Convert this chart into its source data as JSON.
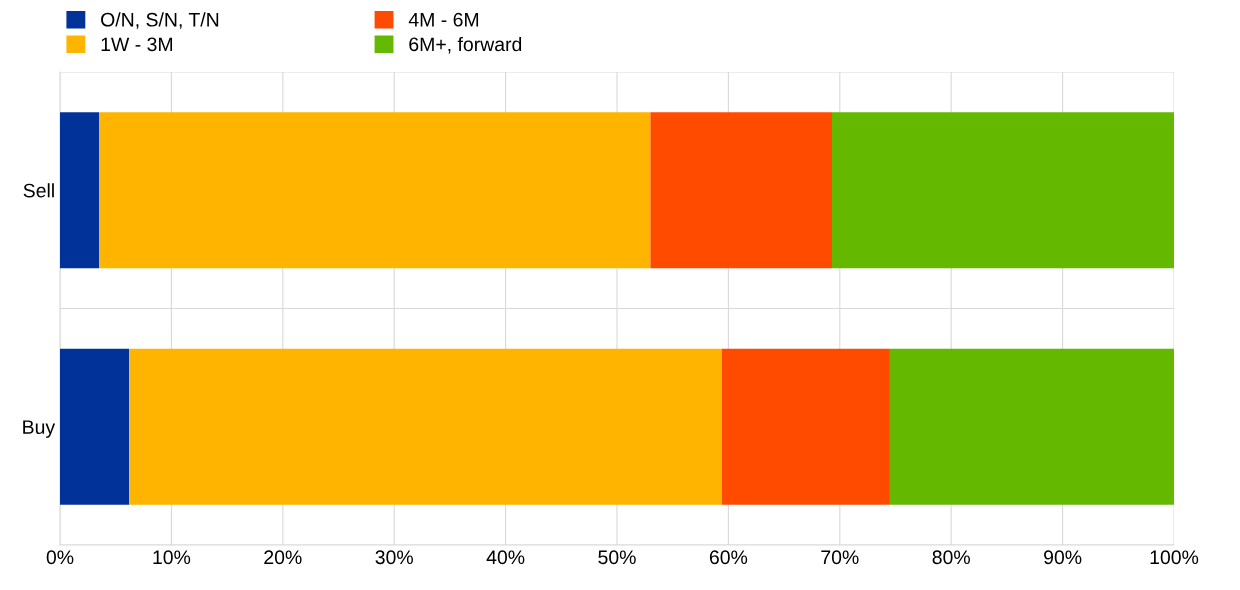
{
  "chart_data": {
    "type": "bar",
    "orientation": "horizontal",
    "stacked": true,
    "categories": [
      "Sell",
      "Buy"
    ],
    "series": [
      {
        "name": "O/N, S/N, T/N",
        "color": "#003299",
        "values": [
          3.5,
          6.2
        ]
      },
      {
        "name": "1W - 3M",
        "color": "#ffb400",
        "values": [
          49.5,
          53.2
        ]
      },
      {
        "name": "4M - 6M",
        "color": "#ff4b00",
        "values": [
          16.3,
          15.1
        ]
      },
      {
        "name": "6M+, forward",
        "color": "#65b800",
        "values": [
          30.7,
          25.5
        ]
      }
    ],
    "xlim": [
      0,
      100
    ],
    "xticks": [
      {
        "value": 0,
        "label": "0%"
      },
      {
        "value": 10,
        "label": "10%"
      },
      {
        "value": 20,
        "label": "20%"
      },
      {
        "value": 30,
        "label": "30%"
      },
      {
        "value": 40,
        "label": "40%"
      },
      {
        "value": 50,
        "label": "50%"
      },
      {
        "value": 60,
        "label": "60%"
      },
      {
        "value": 70,
        "label": "70%"
      },
      {
        "value": 80,
        "label": "80%"
      },
      {
        "value": 90,
        "label": "90%"
      },
      {
        "value": 100,
        "label": "100%"
      }
    ],
    "grid": true,
    "legend": "top left"
  }
}
